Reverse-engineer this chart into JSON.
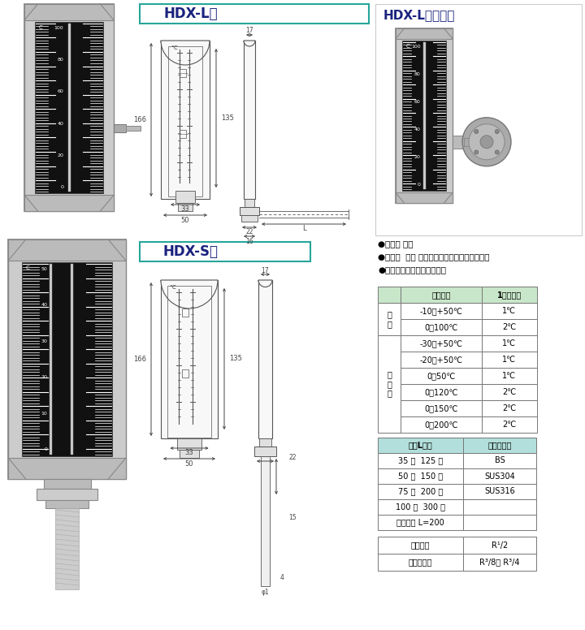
{
  "bg_color": "#ffffff",
  "title_hdx_l": "HDX-L型",
  "title_hdx_l_duct": "HDX-Lダクト用",
  "title_hdx_s": "HDX-S型",
  "bullet_points": [
    "●屋内用 赤液",
    "●屋外用  黒枕 青液（防水型ではありません）",
    "●結露防止タイプもあります"
  ],
  "table1_header": [
    "温度範囲",
    "1目盛の値"
  ],
  "table1_rows": [
    [
      "-10～+50℃",
      "1℃"
    ],
    [
      "0～100℃",
      "2℃"
    ],
    [
      "-30～+50℃",
      "1℃"
    ],
    [
      "-20～+50℃",
      "1℃"
    ],
    [
      "0～50℃",
      "1℃"
    ],
    [
      "0～120℃",
      "2℃"
    ],
    [
      "0～150℃",
      "2℃"
    ],
    [
      "0～200℃",
      "2℃"
    ]
  ],
  "table1_side_labels": [
    "標\n準",
    "標\n準\n外"
  ],
  "table1_side_spans": [
    2,
    6
  ],
  "table2_header": [
    "標準L寸法",
    "保護管材質"
  ],
  "table2_rows": [
    [
      "35 ％  125 ％",
      "BS"
    ],
    [
      "50 ％  150 ％",
      "SUS304"
    ],
    [
      "75 ％  200 ％",
      "SUS316"
    ],
    [
      "100 ％  300 ％",
      ""
    ],
    [
      "ダクト用 L=200",
      ""
    ]
  ],
  "table3_rows": [
    [
      "標準ネジ",
      "R¹/2"
    ],
    [
      "標準外ネジ",
      "R³/8， R³/4"
    ]
  ],
  "header_bg": "#c8e6c9",
  "header2_bg": "#b2dfdb",
  "table_border": "#777777",
  "title_color": "#1a237e",
  "title_border_color": "#26a69a",
  "dim_color": "#444444",
  "case_color": "#cccccc",
  "case_dark": "#aaaaaa",
  "display_color": "#111111",
  "line_color": "#555555"
}
